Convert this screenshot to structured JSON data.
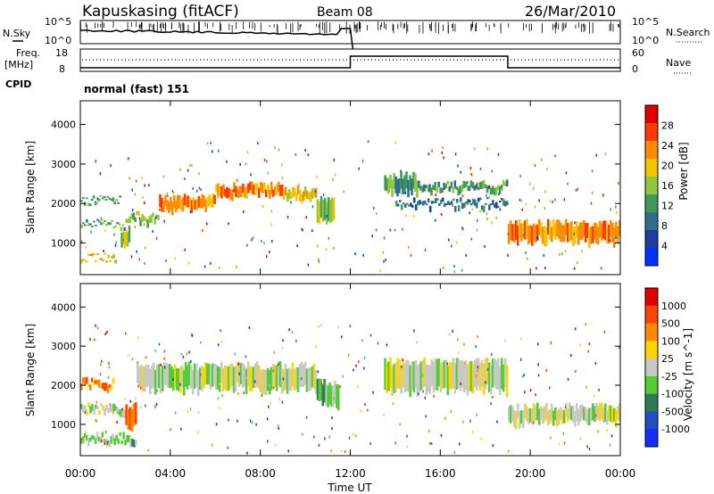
{
  "header": {
    "station": "Kapuskasing (fitACF)",
    "beam": "Beam 08",
    "date": "26/Mar/2010"
  },
  "panel_labels": {
    "nsky": "N.Sky",
    "nsearch": "N.Search",
    "freq_line1": "Freq.",
    "freq_line2": "[MHz]",
    "nave": "Nave",
    "cpid": "CPID",
    "cpid_value": "normal (fast) 151"
  },
  "noise_axis": {
    "left_ticks": [
      "10^5",
      "10^0"
    ],
    "right_ticks": [
      "10^5",
      "10^0"
    ]
  },
  "freq_axis": {
    "left_ticks": [
      "18",
      "8"
    ],
    "right_ticks": [
      "60",
      "0"
    ]
  },
  "time_axis": {
    "label": "Time UT",
    "ticks": [
      "00:00",
      "04:00",
      "08:00",
      "12:00",
      "16:00",
      "20:00",
      "00:00"
    ]
  },
  "colors": {
    "power_scale": [
      "#0033ff",
      "#1f3fa0",
      "#2e6f8e",
      "#3f9a5a",
      "#8fc83a",
      "#f5c400",
      "#ff8c00",
      "#ff3a00",
      "#e00000"
    ],
    "velocity_scale": [
      "#1030ff",
      "#2050c0",
      "#2f7a55",
      "#55cc33",
      "#c8c8c8",
      "#ffd400",
      "#ff8800",
      "#ff4400",
      "#e00000"
    ]
  },
  "chart_data": [
    {
      "type": "heatmap",
      "title": "Power",
      "ylabel": "Slant Range [km]",
      "xlabel": "",
      "xlim_hours": [
        0,
        24
      ],
      "ylim": [
        200,
        4600
      ],
      "y_ticks": [
        "4000",
        "3000",
        "2000",
        "1000"
      ],
      "colorbar": {
        "label": "Power [dB]",
        "ticks": [
          "28",
          "24",
          "20",
          "16",
          "12",
          "8",
          "4"
        ]
      },
      "bands": [
        {
          "t": [
            0.0,
            1.8
          ],
          "range": [
            2050,
            2100
          ],
          "level": 3
        },
        {
          "t": [
            0.0,
            2.0
          ],
          "range": [
            1450,
            1500
          ],
          "level": 3
        },
        {
          "t": [
            0.0,
            1.6
          ],
          "range": [
            600,
            650
          ],
          "level": 5
        },
        {
          "t": [
            1.8,
            2.2
          ],
          "range": [
            950,
            1350
          ],
          "level": 4
        },
        {
          "t": [
            2.0,
            3.5
          ],
          "range": [
            1550,
            1700
          ],
          "level": 4
        },
        {
          "t": [
            3.5,
            6.0
          ],
          "range": [
            1850,
            2150
          ],
          "level": 6
        },
        {
          "t": [
            6.0,
            9.0
          ],
          "range": [
            2200,
            2450
          ],
          "level": 6
        },
        {
          "t": [
            9.0,
            10.5
          ],
          "range": [
            2100,
            2350
          ],
          "level": 5
        },
        {
          "t": [
            10.5,
            11.3
          ],
          "range": [
            1500,
            2100
          ],
          "level": 4
        },
        {
          "t": [
            13.5,
            15.0
          ],
          "range": [
            2300,
            2700
          ],
          "level": 3
        },
        {
          "t": [
            15.0,
            19.0
          ],
          "range": [
            2350,
            2500
          ],
          "level": 3
        },
        {
          "t": [
            14.0,
            19.0
          ],
          "range": [
            1950,
            2050
          ],
          "level": 2
        },
        {
          "t": [
            19.0,
            24.0
          ],
          "range": [
            1050,
            1500
          ],
          "level": 6
        }
      ]
    },
    {
      "type": "heatmap",
      "title": "Velocity",
      "ylabel": "Slant Range [km]",
      "xlabel": "Time UT",
      "xlim_hours": [
        0,
        24
      ],
      "ylim": [
        200,
        4600
      ],
      "y_ticks": [
        "4000",
        "3000",
        "2000",
        "1000"
      ],
      "colorbar": {
        "label": "Velocity [m s^-1]",
        "ticks": [
          "1000",
          "500",
          "100",
          "25",
          "-25",
          "-100",
          "-500",
          "-1000"
        ]
      },
      "bands": [
        {
          "t": [
            0.0,
            1.5
          ],
          "range": [
            1950,
            2100
          ],
          "level": 6
        },
        {
          "t": [
            0.0,
            2.0
          ],
          "range": [
            1300,
            1450
          ],
          "level": 4
        },
        {
          "t": [
            0.0,
            2.5
          ],
          "range": [
            550,
            700
          ],
          "level": 3
        },
        {
          "t": [
            2.0,
            2.5
          ],
          "range": [
            950,
            1500
          ],
          "level": 7
        },
        {
          "t": [
            2.5,
            10.5
          ],
          "range": [
            1900,
            2500
          ],
          "level": 4
        },
        {
          "t": [
            10.5,
            11.5
          ],
          "range": [
            1500,
            2100
          ],
          "level": 3
        },
        {
          "t": [
            13.5,
            19.0
          ],
          "range": [
            1850,
            2600
          ],
          "level": 4
        },
        {
          "t": [
            19.0,
            24.0
          ],
          "range": [
            1050,
            1450
          ],
          "level": 4
        }
      ]
    }
  ]
}
